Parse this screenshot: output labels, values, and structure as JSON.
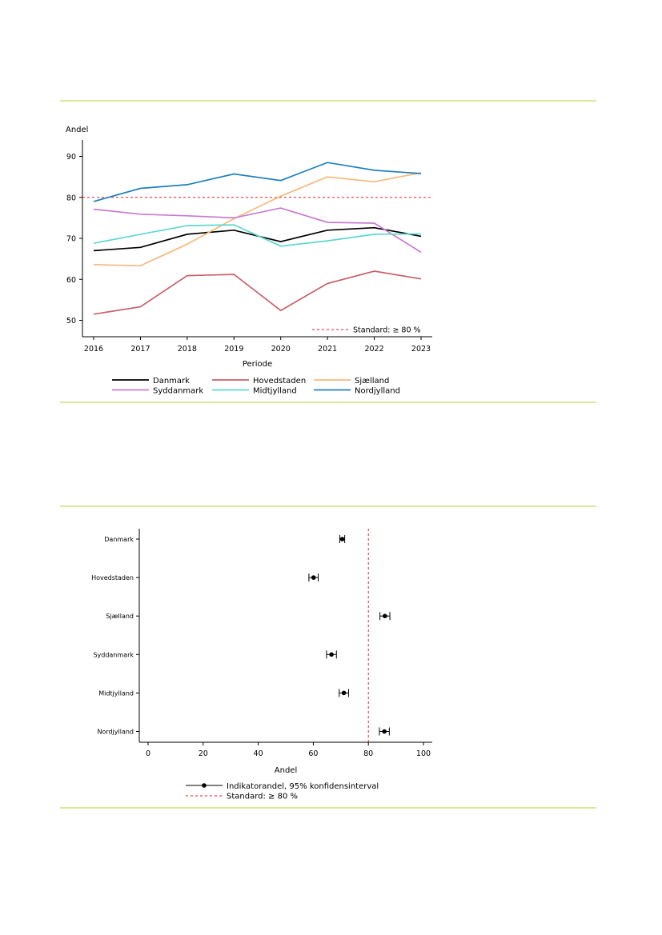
{
  "colors": {
    "rule": "#d9e89a",
    "standard_line": "#e0202a",
    "Danmark": "#000000",
    "Hovedstaden": "#c9606a",
    "Sjælland": "#f6b97c",
    "Syddanmark": "#c87bd0",
    "Midtjylland": "#5dd8d0",
    "Nordjylland": "#1f80c0"
  },
  "chart_data": [
    {
      "type": "line",
      "title": "",
      "ylabel": "Andel",
      "xlabel": "Periode",
      "x": [
        "2016",
        "2017",
        "2018",
        "2019",
        "2020",
        "2021",
        "2022",
        "2023"
      ],
      "ylim": [
        46,
        94
      ],
      "yticks": [
        50,
        60,
        70,
        80,
        90
      ],
      "series": [
        {
          "name": "Danmark",
          "color_key": "Danmark",
          "values": [
            67.0,
            67.8,
            71.0,
            72.0,
            69.2,
            72.0,
            72.6,
            70.5
          ]
        },
        {
          "name": "Hovedstaden",
          "color_key": "Hovedstaden",
          "values": [
            51.5,
            53.3,
            60.9,
            61.2,
            52.4,
            59.0,
            62.0,
            60.1
          ]
        },
        {
          "name": "Sjælland",
          "color_key": "Sjælland",
          "values": [
            63.6,
            63.3,
            68.6,
            74.8,
            80.3,
            85.0,
            83.8,
            86.0
          ]
        },
        {
          "name": "Syddanmark",
          "color_key": "Syddanmark",
          "values": [
            77.1,
            75.9,
            75.5,
            75.0,
            77.4,
            73.9,
            73.7,
            66.6
          ]
        },
        {
          "name": "Midtjylland",
          "color_key": "Midtjylland",
          "values": [
            68.8,
            71.0,
            73.1,
            73.3,
            68.1,
            69.4,
            71.0,
            71.1
          ]
        },
        {
          "name": "Nordjylland",
          "color_key": "Nordjylland",
          "values": [
            79.0,
            82.2,
            83.1,
            85.7,
            84.1,
            88.5,
            86.6,
            85.8
          ]
        }
      ],
      "standard": {
        "value": 80,
        "label": "Standard: ≥ 80 %"
      },
      "legend_position": "bottom",
      "legend": [
        "Danmark",
        "Hovedstaden",
        "Sjælland",
        "Syddanmark",
        "Midtjylland",
        "Nordjylland"
      ]
    },
    {
      "type": "scatter",
      "title": "",
      "xlabel": "Andel",
      "xlim": [
        -3,
        103
      ],
      "xticks": [
        0,
        20,
        40,
        60,
        80,
        100
      ],
      "categories": [
        "Danmark",
        "Hovedstaden",
        "Sjælland",
        "Syddanmark",
        "Midtjylland",
        "Nordjylland"
      ],
      "points": [
        {
          "label": "Danmark",
          "value": 70.5,
          "ci": [
            69.6,
            71.4
          ]
        },
        {
          "label": "Hovedstaden",
          "value": 60.1,
          "ci": [
            58.4,
            61.8
          ]
        },
        {
          "label": "Sjælland",
          "value": 86.0,
          "ci": [
            84.2,
            87.8
          ]
        },
        {
          "label": "Syddanmark",
          "value": 66.6,
          "ci": [
            64.8,
            68.4
          ]
        },
        {
          "label": "Midtjylland",
          "value": 71.1,
          "ci": [
            69.4,
            72.8
          ]
        },
        {
          "label": "Nordjylland",
          "value": 85.8,
          "ci": [
            84.0,
            87.6
          ]
        }
      ],
      "standard": {
        "value": 80,
        "label": "Standard: ≥ 80 %"
      },
      "legend_position": "bottom",
      "legend": [
        "Indikatorandel, 95% konfidensinterval",
        "Standard: ≥ 80 %"
      ]
    }
  ]
}
